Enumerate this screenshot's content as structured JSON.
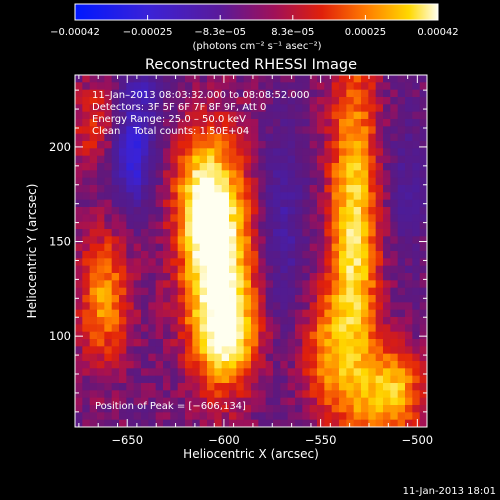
{
  "chart_data": {
    "type": "heatmap",
    "title": "Reconstructed RHESSI Image",
    "xlabel": "Heliocentric X (arcsec)",
    "ylabel": "Heliocentric Y (arcsec)",
    "x_range": [
      -677,
      -495
    ],
    "y_range": [
      52,
      238
    ],
    "x_ticks": [
      -650,
      -600,
      -550,
      -500
    ],
    "x_tick_labels": [
      "−650",
      "−600",
      "−550",
      "−500"
    ],
    "y_ticks": [
      100,
      150,
      200
    ],
    "y_tick_labels": [
      "100",
      "150",
      "200"
    ],
    "colorbar": {
      "range": [
        -0.00042,
        0.00042
      ],
      "tick_labels": [
        "−0.00042",
        "−0.00025",
        "−8.3e−05",
        "8.3e−05",
        "0.00025",
        "0.00042"
      ],
      "units_label": "(photons cm⁻² s⁻¹ asec⁻²)",
      "colormap": "blue-purple-red-yellow-white"
    },
    "annotations": [
      "11–Jan–2013 08:03:32.000 to 08:08:52.000",
      "Detectors: 3F 5F 6F 7F 8F 9F, Att 0",
      "Energy Range: 25.0 – 50.0 keV",
      "Clean    Total counts: 1.50E+04"
    ],
    "peak_label": "Position of Peak = [−606,134]",
    "peak_position": [
      -606,
      134
    ],
    "timestamp": "11-Jan-2013 18:01",
    "features": [
      {
        "x": -603,
        "y": 140,
        "sx": 13,
        "sy": 40,
        "amp": 1.0
      },
      {
        "x": -598,
        "y": 100,
        "sx": 11,
        "sy": 18,
        "amp": 0.55
      },
      {
        "x": -612,
        "y": 175,
        "sx": 10,
        "sy": 22,
        "amp": 0.55
      },
      {
        "x": -533,
        "y": 150,
        "sx": 9,
        "sy": 70,
        "amp": 0.85
      },
      {
        "x": -548,
        "y": 90,
        "sx": 9,
        "sy": 22,
        "amp": 0.45
      },
      {
        "x": -513,
        "y": 70,
        "sx": 11,
        "sy": 16,
        "amp": 0.75
      },
      {
        "x": -662,
        "y": 120,
        "sx": 9,
        "sy": 25,
        "amp": 0.6
      },
      {
        "x": -666,
        "y": 210,
        "sx": 9,
        "sy": 18,
        "amp": 0.35
      },
      {
        "x": -648,
        "y": 195,
        "sx": 8,
        "sy": 18,
        "amp": -0.7
      },
      {
        "x": -642,
        "y": 230,
        "sx": 8,
        "sy": 10,
        "amp": -0.35
      },
      {
        "x": -570,
        "y": 160,
        "sx": 8,
        "sy": 35,
        "amp": -0.35
      },
      {
        "x": -505,
        "y": 180,
        "sx": 7,
        "sy": 25,
        "amp": -0.25
      }
    ]
  }
}
